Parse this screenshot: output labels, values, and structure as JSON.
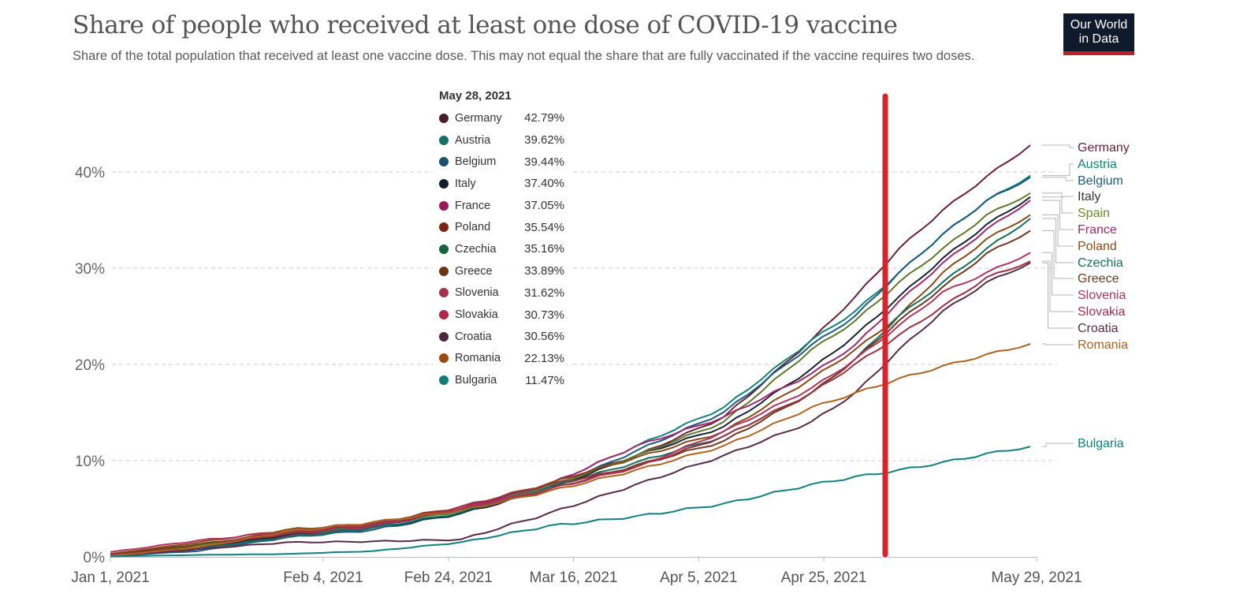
{
  "header": {
    "title": "Share of people who received at least one dose of COVID-19 vaccine",
    "subtitle": "Share of the total population that received at least one vaccine dose. This may not equal the share that are fully vaccinated if the vaccine requires two doses.",
    "logo_line1": "Our World",
    "logo_line2": "in Data"
  },
  "tooltip": {
    "date": "May 28, 2021",
    "rows": [
      {
        "name": "Germany",
        "value": "42.79%",
        "color": "#4a1f24"
      },
      {
        "name": "Austria",
        "value": "39.62%",
        "color": "#13716a"
      },
      {
        "name": "Belgium",
        "value": "39.44%",
        "color": "#1b4f72"
      },
      {
        "name": "Italy",
        "value": "37.40%",
        "color": "#141f2e"
      },
      {
        "name": "France",
        "value": "37.05%",
        "color": "#9b1657"
      },
      {
        "name": "Poland",
        "value": "35.54%",
        "color": "#7c2312"
      },
      {
        "name": "Czechia",
        "value": "35.16%",
        "color": "#17633a"
      },
      {
        "name": "Greece",
        "value": "33.89%",
        "color": "#6c3413"
      },
      {
        "name": "Slovenia",
        "value": "31.62%",
        "color": "#a73147"
      },
      {
        "name": "Slovakia",
        "value": "30.73%",
        "color": "#b02a45"
      },
      {
        "name": "Croatia",
        "value": "30.56%",
        "color": "#4e2540"
      },
      {
        "name": "Romania",
        "value": "22.13%",
        "color": "#9a4a12"
      },
      {
        "name": "Bulgaria",
        "value": "11.47%",
        "color": "#0d7e7a"
      }
    ]
  },
  "annotation": {
    "type": "vertical-marker",
    "color": "#d9232b",
    "date": "May 2, 2021"
  },
  "chart_data": {
    "type": "line",
    "title": "Share of people who received at least one dose of COVID-19 vaccine",
    "xlabel": "",
    "ylabel": "",
    "x_start": "Jan 1, 2021",
    "x_end": "May 29, 2021",
    "x_ticks": [
      {
        "label": "Jan 1, 2021",
        "day": 0
      },
      {
        "label": "Feb 4, 2021",
        "day": 34
      },
      {
        "label": "Feb 24, 2021",
        "day": 54
      },
      {
        "label": "Mar 16, 2021",
        "day": 74
      },
      {
        "label": "Apr 5, 2021",
        "day": 94
      },
      {
        "label": "Apr 25, 2021",
        "day": 114
      },
      {
        "label": "May 29, 2021",
        "day": 148
      }
    ],
    "y_ticks": [
      {
        "label": "0%",
        "value": 0
      },
      {
        "label": "10%",
        "value": 10
      },
      {
        "label": "20%",
        "value": 20
      },
      {
        "label": "30%",
        "value": 30
      },
      {
        "label": "40%",
        "value": 40
      }
    ],
    "ylim": [
      0,
      44
    ],
    "grid": "horizontal-dashed",
    "x_days": [
      0,
      14,
      28,
      42,
      56,
      70,
      84,
      98,
      112,
      119,
      126,
      133,
      140,
      147
    ],
    "series": [
      {
        "name": "Germany",
        "color": "#6b2332",
        "values": [
          0.2,
          1.2,
          2.6,
          3.5,
          5.0,
          7.6,
          10.5,
          14.5,
          22.5,
          27.0,
          32.0,
          36.0,
          39.5,
          42.79
        ]
      },
      {
        "name": "Austria",
        "color": "#12827a",
        "values": [
          0.1,
          0.8,
          2.3,
          3.2,
          4.8,
          7.5,
          11.5,
          15.5,
          22.5,
          25.5,
          29.5,
          33.5,
          37.0,
          39.62
        ]
      },
      {
        "name": "Belgium",
        "color": "#1a5c80",
        "values": [
          0.1,
          0.6,
          2.0,
          2.8,
          4.5,
          7.0,
          11.0,
          15.0,
          22.0,
          25.0,
          29.5,
          33.5,
          37.0,
          39.44
        ]
      },
      {
        "name": "Italy",
        "color": "#1a2333",
        "values": [
          0.2,
          1.0,
          2.2,
          3.0,
          4.5,
          7.0,
          10.5,
          13.5,
          19.5,
          23.0,
          27.0,
          31.0,
          34.5,
          37.4
        ]
      },
      {
        "name": "Spain",
        "color": "#5c7a2a",
        "values": [
          0.3,
          1.2,
          2.4,
          3.2,
          4.8,
          7.3,
          10.5,
          14.0,
          21.5,
          24.5,
          28.5,
          32.0,
          35.5,
          37.8
        ]
      },
      {
        "name": "France",
        "color": "#a0286e",
        "values": [
          0.1,
          0.8,
          2.1,
          3.1,
          5.0,
          7.5,
          11.5,
          14.5,
          19.0,
          22.0,
          26.5,
          30.5,
          34.0,
          37.05
        ]
      },
      {
        "name": "Poland",
        "color": "#8a4a18",
        "values": [
          0.3,
          1.5,
          2.8,
          3.5,
          5.2,
          7.6,
          10.3,
          13.0,
          18.5,
          21.5,
          25.0,
          29.5,
          33.0,
          35.54
        ]
      },
      {
        "name": "Czechia",
        "color": "#13705a",
        "values": [
          0.1,
          0.9,
          2.0,
          3.0,
          4.6,
          7.2,
          9.8,
          12.5,
          17.0,
          20.5,
          25.0,
          28.5,
          32.0,
          35.16
        ]
      },
      {
        "name": "Greece",
        "color": "#6e3a20",
        "values": [
          0.2,
          1.3,
          2.5,
          3.4,
          4.9,
          7.0,
          9.5,
          12.0,
          17.0,
          20.5,
          24.5,
          28.0,
          31.5,
          33.89
        ]
      },
      {
        "name": "Slovenia",
        "color": "#b03560",
        "values": [
          0.5,
          1.7,
          2.6,
          3.4,
          5.0,
          7.0,
          9.3,
          13.0,
          17.5,
          20.5,
          24.0,
          27.5,
          29.5,
          31.62
        ]
      },
      {
        "name": "Slovakia",
        "color": "#9b3040",
        "values": [
          0.2,
          1.0,
          2.4,
          3.3,
          5.2,
          7.5,
          9.3,
          12.5,
          17.0,
          20.0,
          23.0,
          26.0,
          29.0,
          30.73
        ]
      },
      {
        "name": "Croatia",
        "color": "#5a2a4a",
        "values": [
          0.1,
          0.8,
          1.5,
          1.6,
          1.8,
          4.5,
          7.5,
          10.5,
          14.0,
          17.0,
          21.5,
          25.5,
          28.5,
          30.56
        ]
      },
      {
        "name": "Romania",
        "color": "#b0621e",
        "values": [
          0.1,
          1.0,
          2.6,
          3.6,
          4.8,
          6.8,
          9.0,
          11.5,
          15.5,
          17.0,
          18.5,
          19.8,
          21.0,
          22.13
        ]
      },
      {
        "name": "Bulgaria",
        "color": "#118080",
        "values": [
          0.05,
          0.2,
          0.3,
          0.6,
          1.5,
          3.2,
          4.2,
          5.5,
          7.5,
          8.3,
          9.0,
          9.8,
          10.7,
          11.47
        ]
      }
    ],
    "end_labels": [
      {
        "name": "Germany",
        "color": "#6b2332"
      },
      {
        "name": "Austria",
        "color": "#12827a"
      },
      {
        "name": "Belgium",
        "color": "#1a5c80"
      },
      {
        "name": "Italy",
        "color": "#333333"
      },
      {
        "name": "Spain",
        "color": "#6b8a2a"
      },
      {
        "name": "France",
        "color": "#a0286e"
      },
      {
        "name": "Poland",
        "color": "#8a4a18"
      },
      {
        "name": "Czechia",
        "color": "#13705a"
      },
      {
        "name": "Greece",
        "color": "#6e3a20"
      },
      {
        "name": "Slovenia",
        "color": "#b03560"
      },
      {
        "name": "Slovakia",
        "color": "#9b3050"
      },
      {
        "name": "Croatia",
        "color": "#5a2a4a"
      },
      {
        "name": "Romania",
        "color": "#b0621e"
      },
      {
        "name": "Bulgaria",
        "color": "#118080"
      }
    ]
  }
}
